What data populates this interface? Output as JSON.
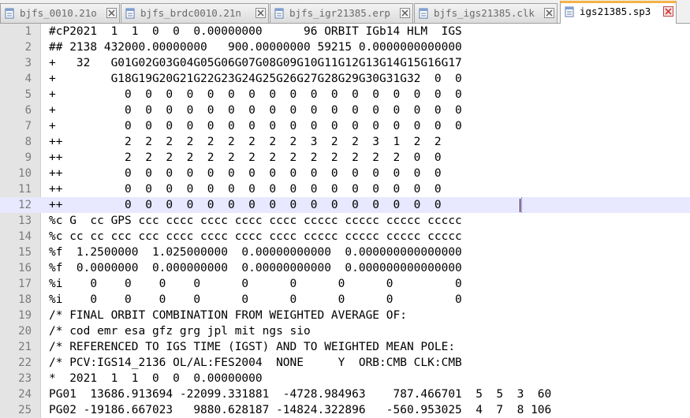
{
  "tabs": [
    {
      "label": "bjfs_0010.21o",
      "active": false
    },
    {
      "label": "bjfs_brdc0010.21n",
      "active": false
    },
    {
      "label": "bjfs_igr21385.erp",
      "active": false
    },
    {
      "label": "bjfs_igs21385.clk",
      "active": false
    },
    {
      "label": "igs21385.sp3",
      "active": true
    }
  ],
  "colors": {
    "active_tab_accent": "#f5b24a",
    "current_line_highlight": "#e8e8ff",
    "close_button": "#d04040"
  },
  "current_line": 12,
  "lines": [
    {
      "n": "1",
      "text": "#cP2021  1  1  0  0  0.00000000      96 ORBIT IGb14 HLM  IGS"
    },
    {
      "n": "2",
      "text": "## 2138 432000.00000000   900.00000000 59215 0.0000000000000"
    },
    {
      "n": "3",
      "text": "+   32   G01G02G03G04G05G06G07G08G09G10G11G12G13G14G15G16G17"
    },
    {
      "n": "4",
      "text": "+        G18G19G20G21G22G23G24G25G26G27G28G29G30G31G32  0  0"
    },
    {
      "n": "5",
      "text": "+          0  0  0  0  0  0  0  0  0  0  0  0  0  0  0  0  0"
    },
    {
      "n": "6",
      "text": "+          0  0  0  0  0  0  0  0  0  0  0  0  0  0  0  0  0"
    },
    {
      "n": "7",
      "text": "+          0  0  0  0  0  0  0  0  0  0  0  0  0  0  0  0  0"
    },
    {
      "n": "8",
      "text": "++         2  2  2  2  2  2  2  2  2  3  2  2  3  1  2  2"
    },
    {
      "n": "9",
      "text": "++         2  2  2  2  2  2  2  2  2  2  2  2  2  2  0  0"
    },
    {
      "n": "10",
      "text": "++         0  0  0  0  0  0  0  0  0  0  0  0  0  0  0  0"
    },
    {
      "n": "11",
      "text": "++         0  0  0  0  0  0  0  0  0  0  0  0  0  0  0  0"
    },
    {
      "n": "12",
      "text": "++         0  0  0  0  0  0  0  0  0  0  0  0  0  0  0  0"
    },
    {
      "n": "13",
      "text": "%c G  cc GPS ccc cccc cccc cccc cccc ccccc ccccc ccccc ccccc"
    },
    {
      "n": "14",
      "text": "%c cc cc ccc ccc cccc cccc cccc cccc ccccc ccccc ccccc ccccc"
    },
    {
      "n": "15",
      "text": "%f  1.2500000  1.025000000  0.00000000000  0.000000000000000"
    },
    {
      "n": "16",
      "text": "%f  0.0000000  0.000000000  0.00000000000  0.000000000000000"
    },
    {
      "n": "17",
      "text": "%i    0    0    0    0      0      0      0      0         0"
    },
    {
      "n": "18",
      "text": "%i    0    0    0    0      0      0      0      0         0"
    },
    {
      "n": "19",
      "text": "/* FINAL ORBIT COMBINATION FROM WEIGHTED AVERAGE OF:"
    },
    {
      "n": "20",
      "text": "/* cod emr esa gfz grg jpl mit ngs sio"
    },
    {
      "n": "21",
      "text": "/* REFERENCED TO IGS TIME (IGST) AND TO WEIGHTED MEAN POLE:"
    },
    {
      "n": "22",
      "text": "/* PCV:IGS14_2136 OL/AL:FES2004  NONE     Y  ORB:CMB CLK:CMB"
    },
    {
      "n": "23",
      "text": "*  2021  1  1  0  0  0.00000000"
    },
    {
      "n": "24",
      "text": "PG01  13686.913694 -22099.331881  -4728.984963    787.466701  5  5  3  60"
    },
    {
      "n": "25",
      "text": "PG02 -19186.667023   9880.628187 -14824.322896   -560.953025  4  7  8 106"
    }
  ]
}
